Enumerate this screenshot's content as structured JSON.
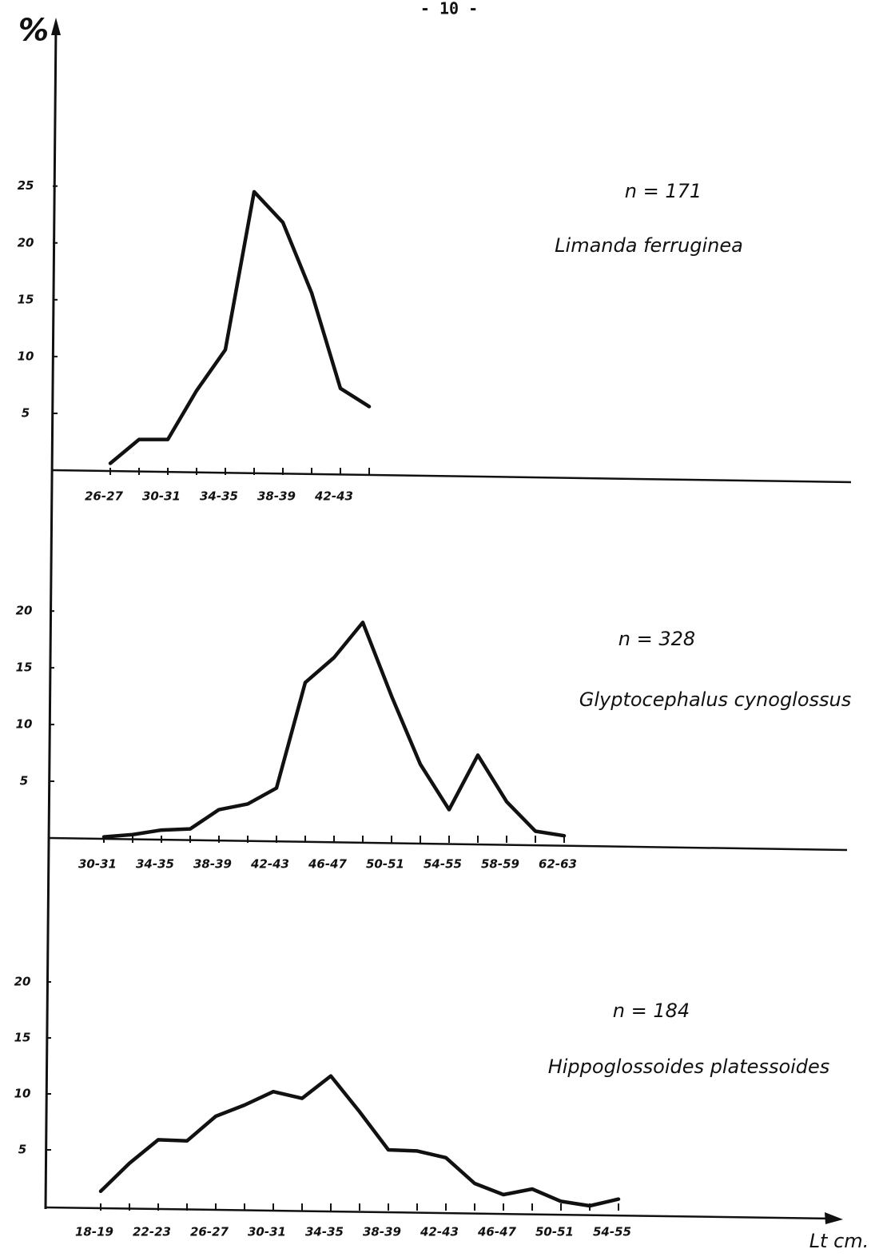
{
  "page_number": "- 10 -",
  "chart_data": [
    {
      "type": "line",
      "title": "Limanda ferruginea",
      "subtitle": "n = 171",
      "ylabel": "%",
      "categories": [
        "26-27",
        null,
        "30-31",
        null,
        "34-35",
        null,
        "38-39",
        null,
        "42-43",
        null
      ],
      "series": [
        {
          "color": "#111111",
          "values": [
            0.6,
            2.7,
            2.7,
            7,
            10.6,
            24.5,
            21.8,
            15.6,
            7.2,
            5.6
          ]
        }
      ],
      "ylim": [
        0,
        38
      ],
      "yticks": [
        5,
        10,
        15,
        20,
        25
      ]
    },
    {
      "type": "line",
      "title": "Glyptocephalus cynoglossus",
      "subtitle": "n = 328",
      "categories": [
        "30-31",
        null,
        "34-35",
        null,
        "38-39",
        null,
        "42-43",
        null,
        "46-47",
        null,
        "50-51",
        null,
        "54-55",
        null,
        "58-59",
        null,
        "62-63"
      ],
      "series": [
        {
          "color": "#111111",
          "values": [
            0.1,
            0.3,
            0.7,
            0.8,
            2.5,
            3,
            4.4,
            13.7,
            15.9,
            19,
            12.5,
            6.5,
            2.5,
            7.3,
            3.2,
            0.6,
            0.2
          ]
        }
      ],
      "ylim": [
        0,
        21
      ],
      "yticks": [
        5,
        10,
        15,
        20
      ]
    },
    {
      "type": "line",
      "title": "Hippoglossoides platessoides",
      "subtitle": "n = 184",
      "xlabel": "Lt cm.",
      "categories": [
        "18-19",
        null,
        "22-23",
        null,
        "26-27",
        null,
        "30-31",
        null,
        "34-35",
        null,
        "38-39",
        null,
        "42-43",
        null,
        "46-47",
        null,
        "50-51",
        null,
        "54-55"
      ],
      "series": [
        {
          "color": "#111111",
          "values": [
            1.3,
            3.8,
            5.9,
            5.8,
            8,
            9,
            10.2,
            9.6,
            11.6,
            8.4,
            5,
            4.9,
            4.3,
            2,
            1,
            1.5,
            0.4,
            0,
            0.6
          ]
        }
      ],
      "ylim": [
        0,
        21
      ],
      "yticks": [
        5,
        10,
        15,
        20
      ]
    }
  ]
}
